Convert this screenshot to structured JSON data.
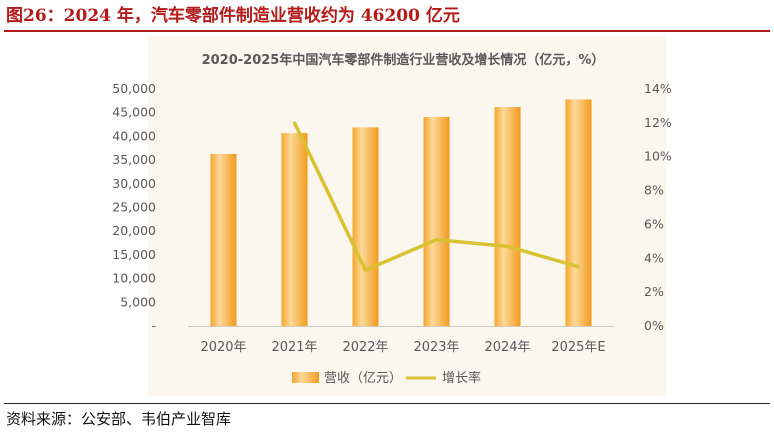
{
  "figure": {
    "title": "图26：2024 年，汽车零部件制造业营收约为 46200 亿元",
    "source": "资料来源：公安部、韦伯产业智库"
  },
  "colors": {
    "accent": "#b31b1b",
    "bar_light": "#fcd99a",
    "bar_dark": "#f29a1c",
    "line": "#d9c232",
    "panel_bg": "#fbf6ee",
    "text": "#595959"
  },
  "chart_data": {
    "type": "bar",
    "title": "2020-2025年中国汽车零部件制造行业营收及增长情况（亿元，%）",
    "categories": [
      "2020年",
      "2021年",
      "2022年",
      "2023年",
      "2024年",
      "2025年E"
    ],
    "series": [
      {
        "name": "营收（亿元）",
        "type": "bar",
        "axis": "left",
        "values": [
          36300,
          40700,
          41900,
          44100,
          46200,
          47800
        ]
      },
      {
        "name": "增长率",
        "type": "line",
        "axis": "right",
        "values": [
          null,
          12.0,
          3.3,
          5.1,
          4.7,
          3.5
        ]
      }
    ],
    "y_left": {
      "min": 0,
      "max": 50000,
      "ticks": [
        0,
        5000,
        10000,
        15000,
        20000,
        25000,
        30000,
        35000,
        40000,
        45000,
        50000
      ],
      "tick_labels": [
        "-",
        "5,000",
        "10,000",
        "15,000",
        "20,000",
        "25,000",
        "30,000",
        "35,000",
        "40,000",
        "45,000",
        "50,000"
      ]
    },
    "y_right": {
      "min": 0,
      "max": 14,
      "ticks": [
        0,
        2,
        4,
        6,
        8,
        10,
        12,
        14
      ],
      "tick_labels": [
        "0%",
        "2%",
        "4%",
        "6%",
        "8%",
        "10%",
        "12%",
        "14%"
      ]
    },
    "grid": false,
    "legend": "bottom"
  }
}
